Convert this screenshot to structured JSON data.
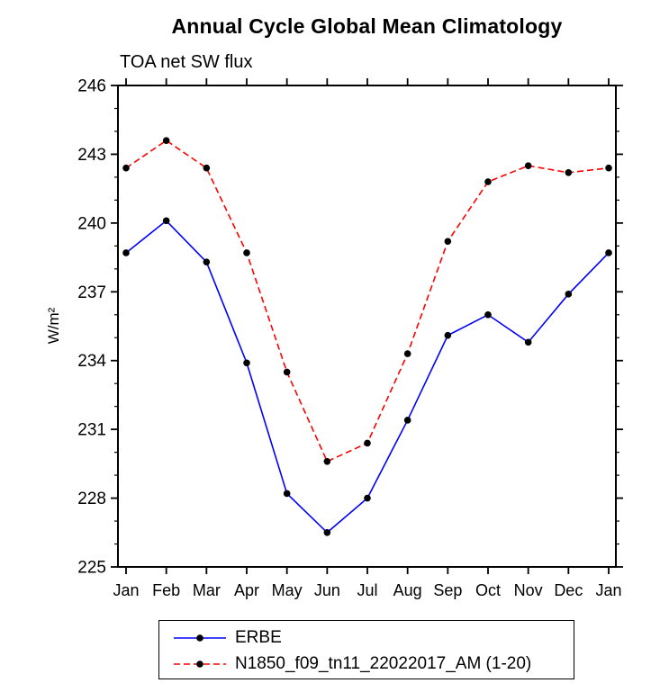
{
  "chart_data": {
    "type": "line",
    "title": "Annual Cycle Global Mean Climatology",
    "subtitle": "TOA net SW flux",
    "ylabel": "W/m²",
    "xlabel": "",
    "categories": [
      "Jan",
      "Feb",
      "Mar",
      "Apr",
      "May",
      "Jun",
      "Jul",
      "Aug",
      "Sep",
      "Oct",
      "Nov",
      "Dec",
      "Jan"
    ],
    "ylim": [
      225,
      246
    ],
    "yticks": [
      225,
      228,
      231,
      234,
      237,
      240,
      243,
      246
    ],
    "y_minor_step": 1,
    "grid": false,
    "legend_position": "bottom",
    "axis_color": "#000000",
    "background": "#ffffff",
    "series": [
      {
        "id": "erbe",
        "name": "ERBE",
        "color": "#0000ff",
        "line_style": "solid",
        "marker": "circle",
        "marker_color": "#000000",
        "values": [
          238.7,
          240.1,
          238.3,
          233.9,
          228.2,
          226.5,
          228.0,
          231.4,
          235.1,
          236.0,
          234.8,
          236.9,
          238.7
        ]
      },
      {
        "id": "model",
        "name": "N1850_f09_tn11_22022017_AM (1-20)",
        "color": "#ff0000",
        "line_style": "dashed",
        "marker": "circle",
        "marker_color": "#000000",
        "values": [
          242.4,
          243.6,
          242.4,
          238.7,
          233.5,
          229.6,
          230.4,
          234.3,
          239.2,
          241.8,
          242.5,
          242.2,
          242.4
        ]
      }
    ]
  }
}
